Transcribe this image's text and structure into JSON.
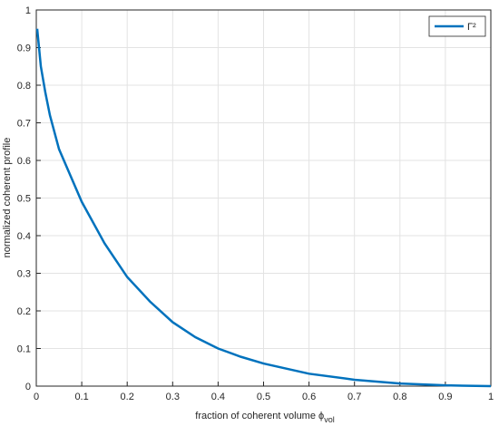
{
  "chart_data": {
    "type": "line",
    "xlabel": "fraction of coherent volume ϕ",
    "xlabel_subscript": "vol",
    "ylabel": "normalized coherent profile",
    "x": [
      0.002,
      0.01,
      0.02,
      0.03,
      0.05,
      0.075,
      0.1,
      0.15,
      0.2,
      0.25,
      0.3,
      0.35,
      0.4,
      0.45,
      0.5,
      0.6,
      0.7,
      0.8,
      0.9,
      1.0
    ],
    "series": [
      {
        "name": "Γ²",
        "color": "#0072bd",
        "values": [
          0.95,
          0.85,
          0.78,
          0.72,
          0.63,
          0.56,
          0.49,
          0.38,
          0.29,
          0.225,
          0.17,
          0.13,
          0.1,
          0.078,
          0.06,
          0.033,
          0.017,
          0.007,
          0.002,
          0
        ]
      }
    ],
    "xlim": [
      0,
      1
    ],
    "ylim": [
      0,
      1
    ],
    "xticks": [
      0,
      0.1,
      0.2,
      0.3,
      0.4,
      0.5,
      0.6,
      0.7,
      0.8,
      0.9,
      1
    ],
    "yticks": [
      0,
      0.1,
      0.2,
      0.3,
      0.4,
      0.5,
      0.6,
      0.7,
      0.8,
      0.9,
      1
    ],
    "grid": true,
    "legend": "upper-right"
  }
}
